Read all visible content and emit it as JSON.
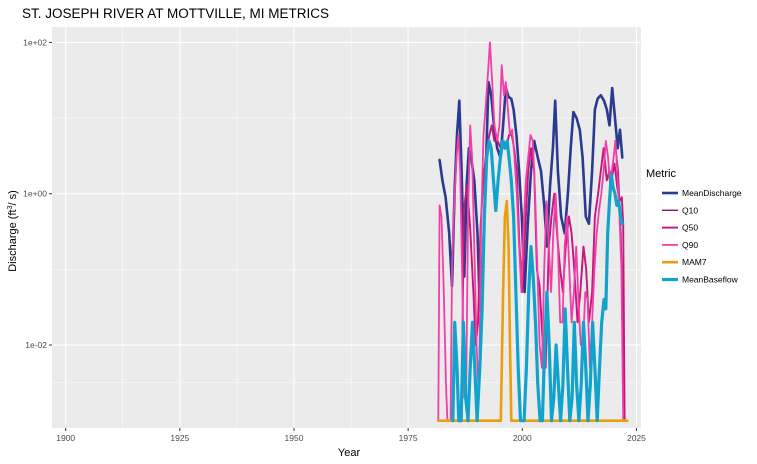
{
  "chart_data": {
    "type": "line",
    "title": "ST. JOSEPH RIVER AT MOTTVILLE, MI  METRICS",
    "xlabel": "Year",
    "ylabel_base": "Discharge (ft",
    "ylabel_sup": "3",
    "ylabel_end": "/ s)",
    "x_ticks": [
      1900,
      1925,
      1950,
      1975,
      2000,
      2025
    ],
    "y_ticks": [
      {
        "value": 0.01,
        "label": "1e-02"
      },
      {
        "value": 1,
        "label": "1e+00"
      },
      {
        "value": 100,
        "label": "1e+02"
      }
    ],
    "y_scale": "log10",
    "xlim": [
      1897,
      2026
    ],
    "ylim": [
      0.0008,
      160
    ],
    "grid": true,
    "legend_title": "Metric",
    "legend_position": "right",
    "series": [
      {
        "name": "MeanDischarge",
        "color": "#2a3b8f",
        "width": 2.6,
        "points": [
          [
            1981.9,
            2.8
          ],
          [
            1982.5,
            1.5
          ],
          [
            1983.2,
            0.9
          ],
          [
            1984,
            0.3
          ],
          [
            1984.6,
            0.06
          ],
          [
            1985.2,
            1.2
          ],
          [
            1985.7,
            6
          ],
          [
            1986.2,
            17
          ],
          [
            1986.7,
            2
          ],
          [
            1987.3,
            0.08
          ],
          [
            1987.8,
            1.3
          ],
          [
            1988.3,
            4
          ],
          [
            1988.8,
            3
          ],
          [
            1989.5,
            1.5
          ],
          [
            1990.2,
            0.3
          ],
          [
            1990.7,
            0.03
          ],
          [
            1991.3,
            0.1
          ],
          [
            1992,
            2
          ],
          [
            1992.6,
            30
          ],
          [
            1993.2,
            20
          ],
          [
            1993.8,
            8
          ],
          [
            1994.5,
            4
          ],
          [
            1995.2,
            3
          ],
          [
            1995.8,
            8
          ],
          [
            1996.4,
            25
          ],
          [
            1997,
            19
          ],
          [
            1997.6,
            18
          ],
          [
            1998.1,
            13
          ],
          [
            1998.7,
            6
          ],
          [
            1999.3,
            2
          ],
          [
            1999.9,
            0.5
          ],
          [
            2000.5,
            0.05
          ],
          [
            2001.2,
            0.4
          ],
          [
            2001.9,
            2
          ],
          [
            2002.6,
            5
          ],
          [
            2003.4,
            3
          ],
          [
            2004.1,
            2
          ],
          [
            2004.8,
            0.7
          ],
          [
            2005.4,
            0.2
          ],
          [
            2006.1,
            1.3
          ],
          [
            2006.7,
            4
          ],
          [
            2007.2,
            17
          ],
          [
            2007.8,
            2
          ],
          [
            2008.5,
            0.5
          ],
          [
            2009.3,
            0.3
          ],
          [
            2010,
            1
          ],
          [
            2010.6,
            4
          ],
          [
            2011.2,
            12
          ],
          [
            2011.9,
            10
          ],
          [
            2012.6,
            7
          ],
          [
            2013.2,
            3
          ],
          [
            2013.9,
            0.5
          ],
          [
            2014.6,
            0.4
          ],
          [
            2015.3,
            2
          ],
          [
            2015.9,
            13
          ],
          [
            2016.5,
            18
          ],
          [
            2017.2,
            20
          ],
          [
            2017.9,
            17
          ],
          [
            2018.5,
            13
          ],
          [
            2019.1,
            8
          ],
          [
            2019.7,
            25
          ],
          [
            2020.3,
            10
          ],
          [
            2020.9,
            4
          ],
          [
            2021.4,
            7
          ],
          [
            2021.9,
            3
          ]
        ]
      },
      {
        "name": "Q10",
        "color": "#7a1f6b",
        "width": 1.4,
        "points": [
          [
            2020.3,
            5
          ],
          [
            2021,
            2
          ],
          [
            2021.6,
            0.3
          ],
          [
            2022.2,
            0.01
          ],
          [
            2022.4,
            0.001
          ]
        ]
      },
      {
        "name": "Q50",
        "color": "#c2187a",
        "width": 1.9,
        "points": [
          [
            1986.7,
            0.001
          ],
          [
            1987.2,
            0.6
          ],
          [
            1987.9,
            1.3
          ],
          [
            1988.6,
            0.35
          ],
          [
            1989.3,
            0.05
          ],
          [
            1989.8,
            0.01
          ],
          [
            1990.3,
            0.02
          ],
          [
            1990.9,
            0.4
          ],
          [
            1991.5,
            1.6
          ],
          [
            1992.2,
            4
          ],
          [
            1992.8,
            6
          ],
          [
            1993.3,
            8
          ],
          [
            1993.9,
            5
          ],
          [
            1994.6,
            5
          ],
          [
            1995.3,
            4
          ],
          [
            1995.9,
            5
          ],
          [
            1996.5,
            4
          ],
          [
            1997.1,
            6
          ],
          [
            1997.7,
            6
          ],
          [
            1998.2,
            4
          ],
          [
            1998.8,
            2
          ],
          [
            1999.4,
            0.2
          ],
          [
            2000,
            0.05
          ],
          [
            2000.6,
            0.3
          ],
          [
            2001.3,
            2
          ],
          [
            2001.9,
            4
          ],
          [
            2002.6,
            2
          ],
          [
            2003.2,
            0.1
          ],
          [
            2003.8,
            0.06
          ],
          [
            2004.5,
            0.01
          ],
          [
            2005.1,
            0.005
          ],
          [
            2005.8,
            0.2
          ],
          [
            2006.4,
            0.5
          ],
          [
            2007,
            1
          ],
          [
            2007.6,
            0.3
          ],
          [
            2008.3,
            0.1
          ],
          [
            2008.9,
            0.05
          ],
          [
            2009.5,
            0.2
          ],
          [
            2010.2,
            0.5
          ],
          [
            2010.8,
            0.3
          ],
          [
            2011.4,
            0.1
          ],
          [
            2012.1,
            0.02
          ],
          [
            2012.7,
            0.05
          ],
          [
            2013.4,
            0.2
          ],
          [
            2014,
            0.1
          ],
          [
            2014.6,
            0.02
          ],
          [
            2015.3,
            0.05
          ],
          [
            2015.9,
            0.5
          ],
          [
            2016.6,
            1
          ],
          [
            2017.2,
            2
          ],
          [
            2017.8,
            4
          ],
          [
            2018.5,
            1.5
          ],
          [
            2019.1,
            2
          ],
          [
            2019.6,
            1.6
          ],
          [
            2020.2,
            2.5
          ],
          [
            2020.8,
            1.2
          ],
          [
            2021.3,
            0.8
          ],
          [
            2021.8,
            0.9
          ],
          [
            2022.1,
            0.4
          ],
          [
            2022.4,
            0.001
          ]
        ]
      },
      {
        "name": "Q90",
        "color": "#f23ea8",
        "width": 1.8,
        "points": [
          [
            1981.6,
            0.001
          ],
          [
            1981.9,
            0.7
          ],
          [
            1982.3,
            0.5
          ],
          [
            1982.8,
            0.05
          ],
          [
            1983.3,
            0.003
          ],
          [
            1983.6,
            0.001
          ],
          [
            1984.3,
            0.001
          ],
          [
            1984.6,
            0.1
          ],
          [
            1985.1,
            0.8
          ],
          [
            1985.6,
            3
          ],
          [
            1986,
            6
          ],
          [
            1986.4,
            2
          ],
          [
            1986.9,
            0.05
          ],
          [
            1987.3,
            0.002
          ],
          [
            1987.7,
            0.002
          ],
          [
            1988.1,
            0.5
          ],
          [
            1988.6,
            8
          ],
          [
            1989,
            3
          ],
          [
            1989.5,
            0.2
          ],
          [
            1990,
            0.01
          ],
          [
            1990.5,
            0.002
          ],
          [
            1991,
            0.4
          ],
          [
            1991.5,
            6
          ],
          [
            1992,
            15
          ],
          [
            1992.5,
            40
          ],
          [
            1992.9,
            100
          ],
          [
            1993.4,
            30
          ],
          [
            1993.9,
            8
          ],
          [
            1994.5,
            5
          ],
          [
            1995,
            8
          ],
          [
            1995.5,
            50
          ],
          [
            1996,
            20
          ],
          [
            1996.4,
            30
          ],
          [
            1996.9,
            12
          ],
          [
            1997.3,
            6
          ],
          [
            1997.8,
            7
          ],
          [
            1998.3,
            3
          ],
          [
            1998.8,
            1
          ],
          [
            1999.3,
            0.2
          ],
          [
            1999.8,
            0.05
          ],
          [
            2000.3,
            0.4
          ],
          [
            2000.8,
            1.5
          ],
          [
            2001.3,
            3
          ],
          [
            2001.8,
            6
          ],
          [
            2002.3,
            5
          ],
          [
            2002.8,
            1
          ],
          [
            2003.3,
            0.1
          ],
          [
            2003.8,
            0.01
          ],
          [
            2004.3,
            0.005
          ],
          [
            2004.8,
            0.1
          ],
          [
            2005.3,
            0.8
          ],
          [
            2005.8,
            0.2
          ],
          [
            2006.3,
            0.05
          ],
          [
            2006.8,
            0.3
          ],
          [
            2007.3,
            1
          ],
          [
            2007.8,
            0.2
          ],
          [
            2008.3,
            0.02
          ],
          [
            2008.8,
            0.02
          ],
          [
            2009.3,
            0.2
          ],
          [
            2009.8,
            0.5
          ],
          [
            2010.3,
            0.1
          ],
          [
            2010.8,
            0.02
          ],
          [
            2011.3,
            0.05
          ],
          [
            2011.8,
            0.2
          ],
          [
            2012.3,
            0.04
          ],
          [
            2012.8,
            0.01
          ],
          [
            2013.3,
            0.01
          ],
          [
            2013.8,
            0.05
          ],
          [
            2014.3,
            0.04
          ],
          [
            2014.8,
            0.005
          ],
          [
            2015.3,
            0.02
          ],
          [
            2015.8,
            0.1
          ],
          [
            2016.3,
            0.3
          ],
          [
            2016.8,
            0.6
          ],
          [
            2017.3,
            1
          ],
          [
            2017.8,
            2
          ],
          [
            2018.3,
            5
          ],
          [
            2018.8,
            3
          ],
          [
            2019.2,
            1.3
          ],
          [
            2019.6,
            2
          ],
          [
            2020,
            3
          ],
          [
            2020.4,
            5
          ],
          [
            2020.8,
            2
          ],
          [
            2021.3,
            0.5
          ],
          [
            2021.7,
            0.1
          ],
          [
            2022.1,
            0.001
          ]
        ]
      },
      {
        "name": "MAM7",
        "color": "#e8a00f",
        "width": 2.6,
        "points": [
          [
            1981.6,
            0.001
          ],
          [
            1995.3,
            0.001
          ],
          [
            1995.8,
            0.05
          ],
          [
            1996.2,
            0.5
          ],
          [
            1996.6,
            0.8
          ],
          [
            1997,
            0.2
          ],
          [
            1997.3,
            0.01
          ],
          [
            1997.6,
            0.001
          ],
          [
            2023,
            0.001
          ]
        ]
      },
      {
        "name": "MeanBaseflow",
        "color": "#11a3cc",
        "width": 3.2,
        "points": [
          [
            1984.8,
            0.001
          ],
          [
            1985.2,
            0.02
          ],
          [
            1985.7,
            0.005
          ],
          [
            1986.1,
            0.001
          ],
          [
            1986.6,
            0.001
          ],
          [
            1987.1,
            0.02
          ],
          [
            1987.6,
            0.002
          ],
          [
            1988.1,
            0.001
          ],
          [
            1988.6,
            0.005
          ],
          [
            1989.1,
            0.02
          ],
          [
            1989.6,
            0.005
          ],
          [
            1990.1,
            0.001
          ],
          [
            1990.7,
            0.005
          ],
          [
            1991.2,
            0.03
          ],
          [
            1991.7,
            0.5
          ],
          [
            1992.2,
            3
          ],
          [
            1992.7,
            5
          ],
          [
            1993.2,
            4
          ],
          [
            1993.7,
            1.5
          ],
          [
            1994.2,
            0.6
          ],
          [
            1994.7,
            1.5
          ],
          [
            1995.2,
            3
          ],
          [
            1995.7,
            5
          ],
          [
            1996.2,
            4
          ],
          [
            1996.7,
            5
          ],
          [
            1997.1,
            3
          ],
          [
            1997.6,
            1.5
          ],
          [
            1998.1,
            0.5
          ],
          [
            1998.6,
            0.05
          ],
          [
            1999.1,
            0.005
          ],
          [
            1999.6,
            0.001
          ],
          [
            2000.4,
            0.001
          ],
          [
            2000.9,
            0.005
          ],
          [
            2001.4,
            0.05
          ],
          [
            2001.9,
            0.2
          ],
          [
            2002.4,
            0.08
          ],
          [
            2002.9,
            0.02
          ],
          [
            2003.4,
            0.003
          ],
          [
            2003.9,
            0.001
          ],
          [
            2004.4,
            0.001
          ],
          [
            2004.9,
            0.01
          ],
          [
            2005.4,
            0.05
          ],
          [
            2005.9,
            0.01
          ],
          [
            2006.4,
            0.001
          ],
          [
            2006.9,
            0.002
          ],
          [
            2007.4,
            0.01
          ],
          [
            2007.9,
            0.003
          ],
          [
            2008.4,
            0.001
          ],
          [
            2008.9,
            0.003
          ],
          [
            2009.4,
            0.03
          ],
          [
            2009.9,
            0.005
          ],
          [
            2010.4,
            0.001
          ],
          [
            2010.9,
            0.002
          ],
          [
            2011.4,
            0.02
          ],
          [
            2011.9,
            0.003
          ],
          [
            2012.4,
            0.001
          ],
          [
            2012.9,
            0.003
          ],
          [
            2013.4,
            0.02
          ],
          [
            2013.9,
            0.005
          ],
          [
            2014.4,
            0.001
          ],
          [
            2014.9,
            0.003
          ],
          [
            2015.4,
            0.02
          ],
          [
            2015.9,
            0.005
          ],
          [
            2016.4,
            0.001
          ],
          [
            2016.9,
            0.005
          ],
          [
            2017.4,
            0.02
          ],
          [
            2017.9,
            0.04
          ],
          [
            2018.3,
            0.03
          ],
          [
            2018.7,
            0.3
          ],
          [
            2019.1,
            0.8
          ],
          [
            2019.5,
            1.8
          ],
          [
            2019.9,
            1.2
          ],
          [
            2020.3,
            1
          ],
          [
            2020.7,
            0.7
          ],
          [
            2021.1,
            0.8
          ],
          [
            2021.5,
            0.5
          ],
          [
            2021.9,
            0.4
          ]
        ]
      }
    ]
  }
}
